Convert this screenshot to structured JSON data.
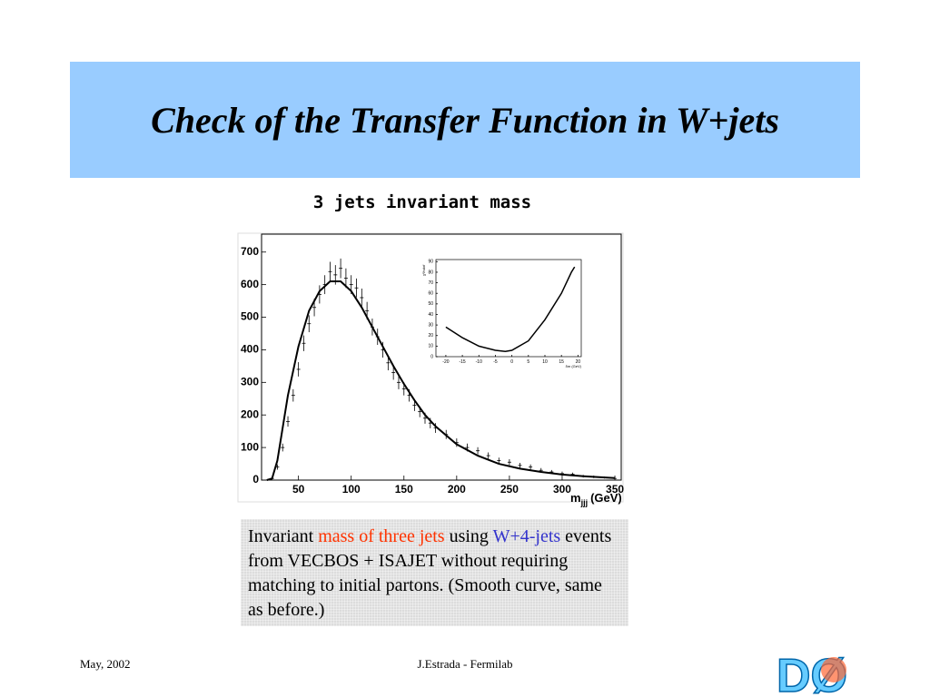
{
  "header": {
    "title": "Check of the Transfer Function in W+jets"
  },
  "subtitle": "3 jets invariant mass",
  "chart_data": [
    {
      "type": "scatter",
      "x": [
        25,
        30,
        35,
        40,
        45,
        50,
        55,
        60,
        65,
        70,
        75,
        80,
        85,
        90,
        95,
        100,
        105,
        110,
        115,
        120,
        125,
        130,
        135,
        140,
        145,
        150,
        155,
        160,
        165,
        170,
        175,
        180,
        190,
        200,
        210,
        220,
        230,
        240,
        250,
        260,
        270,
        280,
        290,
        300,
        310,
        320,
        330,
        340,
        350
      ],
      "values": [
        5,
        40,
        100,
        180,
        260,
        340,
        420,
        480,
        530,
        570,
        600,
        640,
        630,
        650,
        620,
        600,
        590,
        560,
        520,
        470,
        440,
        400,
        360,
        330,
        300,
        280,
        260,
        230,
        210,
        190,
        175,
        160,
        140,
        115,
        100,
        90,
        75,
        60,
        55,
        45,
        40,
        30,
        25,
        20,
        18,
        12,
        10,
        8,
        5
      ],
      "errors": [
        3,
        8,
        12,
        16,
        19,
        22,
        24,
        26,
        27,
        28,
        29,
        30,
        30,
        30,
        30,
        29,
        29,
        28,
        27,
        26,
        25,
        24,
        23,
        22,
        21,
        20,
        19,
        18,
        17,
        17,
        16,
        15,
        14,
        13,
        12,
        11,
        10,
        9,
        9,
        8,
        8,
        7,
        6,
        6,
        5,
        4,
        4,
        3,
        3
      ],
      "fit": {
        "x": [
          20,
          25,
          30,
          35,
          40,
          50,
          60,
          70,
          80,
          90,
          100,
          110,
          120,
          130,
          140,
          150,
          160,
          170,
          180,
          200,
          220,
          240,
          260,
          280,
          300,
          320,
          350
        ],
        "values": [
          0,
          5,
          60,
          160,
          260,
          410,
          520,
          580,
          610,
          610,
          580,
          530,
          470,
          410,
          350,
          295,
          245,
          200,
          165,
          110,
          75,
          50,
          35,
          25,
          17,
          12,
          6
        ]
      },
      "xlim": [
        15,
        356
      ],
      "ylim": [
        0,
        755
      ],
      "xticks": [
        50,
        100,
        150,
        200,
        250,
        300,
        350
      ],
      "yticks": [
        0,
        100,
        200,
        300,
        400,
        500,
        600,
        700
      ],
      "xlabel": "m",
      "xlabel_sub": "jjj",
      "xlabel_unit": "(GeV)"
    },
    {
      "type": "line",
      "x": [
        -20,
        -15,
        -10,
        -5,
        -2,
        0,
        5,
        10,
        15,
        18,
        19
      ],
      "values": [
        28,
        18,
        10,
        6,
        5,
        6,
        15,
        35,
        60,
        80,
        85
      ],
      "xlim": [
        -23,
        21
      ],
      "ylim": [
        0,
        92
      ],
      "xticks": [
        -20,
        -15,
        -10,
        -5,
        0,
        5,
        10,
        15,
        20
      ],
      "yticks": [
        0,
        10,
        20,
        30,
        40,
        50,
        60,
        70,
        80,
        90
      ],
      "xlabel": "δm (GeV)",
      "ylabel": "χ²/ndof"
    }
  ],
  "caption": [
    {
      "text": "Invariant",
      "color": "#000000"
    },
    {
      "text": "mass of three jets",
      "color": "#ff3300"
    },
    {
      "text": "using",
      "color": "#000000"
    },
    {
      "text": "W+4-jets",
      "color": "#3333cc"
    },
    {
      "text": "events from VECBOS + ISAJET without requiring matching to initial partons.",
      "color": "#000000"
    },
    {
      "text": "(Smooth curve, same as before.)",
      "color": "#000000"
    }
  ],
  "footer": {
    "date": "May, 2002",
    "author": "J.Estrada - Fermilab"
  },
  "logo": "DØ"
}
